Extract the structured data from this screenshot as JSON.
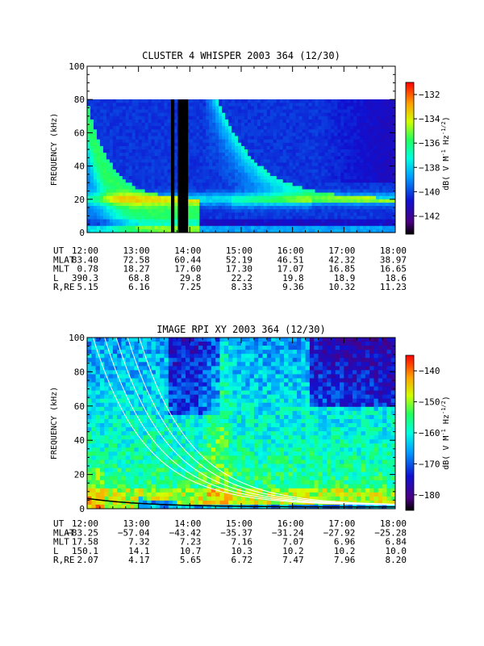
{
  "chart_data": [
    {
      "type": "heatmap",
      "title": "CLUSTER 4 WHISPER 2003 364 (12/30)",
      "ylabel": "FREQUENCY (kHz)",
      "colorbar_label": "dB( V M⁻¹ Hz⁻¹ᐟ²)",
      "colorbar_label_parts": {
        "prefix": "dB( V M",
        "sup1": "-1",
        "mid": " Hz",
        "sup2": "-1/2",
        "suffix": ")"
      },
      "ylim": [
        0,
        100
      ],
      "ytick_labels": [
        "0",
        "20",
        "40",
        "60",
        "80",
        "100"
      ],
      "yticks": [
        0,
        20,
        40,
        60,
        80,
        100
      ],
      "x_ut": [
        "12:00",
        "18:00"
      ],
      "colorbar_ticks": [
        -132,
        -134,
        -136,
        -138,
        -140,
        -142
      ],
      "colorbar_tick_labels": [
        "−132",
        "−134",
        "−136",
        "−138",
        "−140",
        "−142"
      ],
      "colorbar_range": [
        -143.5,
        -131
      ],
      "data_upper_freq": 80,
      "data_gaps_ut": [
        [
          "13:38",
          "13:42"
        ],
        [
          "13:46",
          "13:58"
        ]
      ],
      "ephemeris": {
        "labels": [
          "UT",
          "MLAT",
          "MLT",
          "L",
          "R,RE"
        ],
        "columns": [
          {
            "UT": "12:00",
            "MLAT": "83.40",
            "MLT": "0.78",
            "L": "390.3",
            "R,RE": "5.15"
          },
          {
            "UT": "13:00",
            "MLAT": "72.58",
            "MLT": "18.27",
            "L": "68.8",
            "R,RE": "6.16"
          },
          {
            "UT": "14:00",
            "MLAT": "60.44",
            "MLT": "17.60",
            "L": "29.8",
            "R,RE": "7.25"
          },
          {
            "UT": "15:00",
            "MLAT": "52.19",
            "MLT": "17.30",
            "L": "22.2",
            "R,RE": "8.33"
          },
          {
            "UT": "16:00",
            "MLAT": "46.51",
            "MLT": "17.07",
            "L": "19.8",
            "R,RE": "9.36"
          },
          {
            "UT": "17:00",
            "MLAT": "42.32",
            "MLT": "16.85",
            "L": "18.9",
            "R,RE": "10.32"
          },
          {
            "UT": "18:00",
            "MLAT": "38.97",
            "MLT": "16.65",
            "L": "18.6",
            "R,RE": "11.23"
          }
        ]
      }
    },
    {
      "type": "heatmap",
      "title": "IMAGE RPI XY 2003 364 (12/30)",
      "ylabel": "FREQUENCY (kHz)",
      "colorbar_label_parts": {
        "prefix": "dB( V M",
        "sup1": "-1",
        "mid": " Hz",
        "sup2": "-1/2",
        "suffix": ")"
      },
      "ylim": [
        0,
        100
      ],
      "ytick_labels": [
        "0",
        "20",
        "40",
        "60",
        "80",
        "100"
      ],
      "yticks": [
        0,
        20,
        40,
        60,
        80,
        100
      ],
      "colorbar_ticks": [
        -140,
        -150,
        -160,
        -170,
        -180
      ],
      "colorbar_tick_labels": [
        "−140",
        "−150",
        "−160",
        "−170",
        "−180"
      ],
      "colorbar_range": [
        -185,
        -135
      ],
      "ephemeris": {
        "labels": [
          "UT",
          "MLAT",
          "MLT",
          "L",
          "R,RE"
        ],
        "columns": [
          {
            "UT": "12:00",
            "MLAT": "−83.25",
            "MLT": "17.58",
            "L": "150.1",
            "R,RE": "2.07"
          },
          {
            "UT": "13:00",
            "MLAT": "−57.04",
            "MLT": "7.32",
            "L": "14.1",
            "R,RE": "4.17"
          },
          {
            "UT": "14:00",
            "MLAT": "−43.42",
            "MLT": "7.23",
            "L": "10.7",
            "R,RE": "5.65"
          },
          {
            "UT": "15:00",
            "MLAT": "−35.37",
            "MLT": "7.16",
            "L": "10.3",
            "R,RE": "6.72"
          },
          {
            "UT": "16:00",
            "MLAT": "−31.24",
            "MLT": "7.07",
            "L": "10.2",
            "R,RE": "7.47"
          },
          {
            "UT": "17:00",
            "MLAT": "−27.92",
            "MLT": "6.96",
            "L": "10.2",
            "R,RE": "7.96"
          },
          {
            "UT": "18:00",
            "MLAT": "−25.28",
            "MLT": "6.84",
            "L": "10.0",
            "R,RE": "8.20"
          }
        ]
      }
    }
  ]
}
